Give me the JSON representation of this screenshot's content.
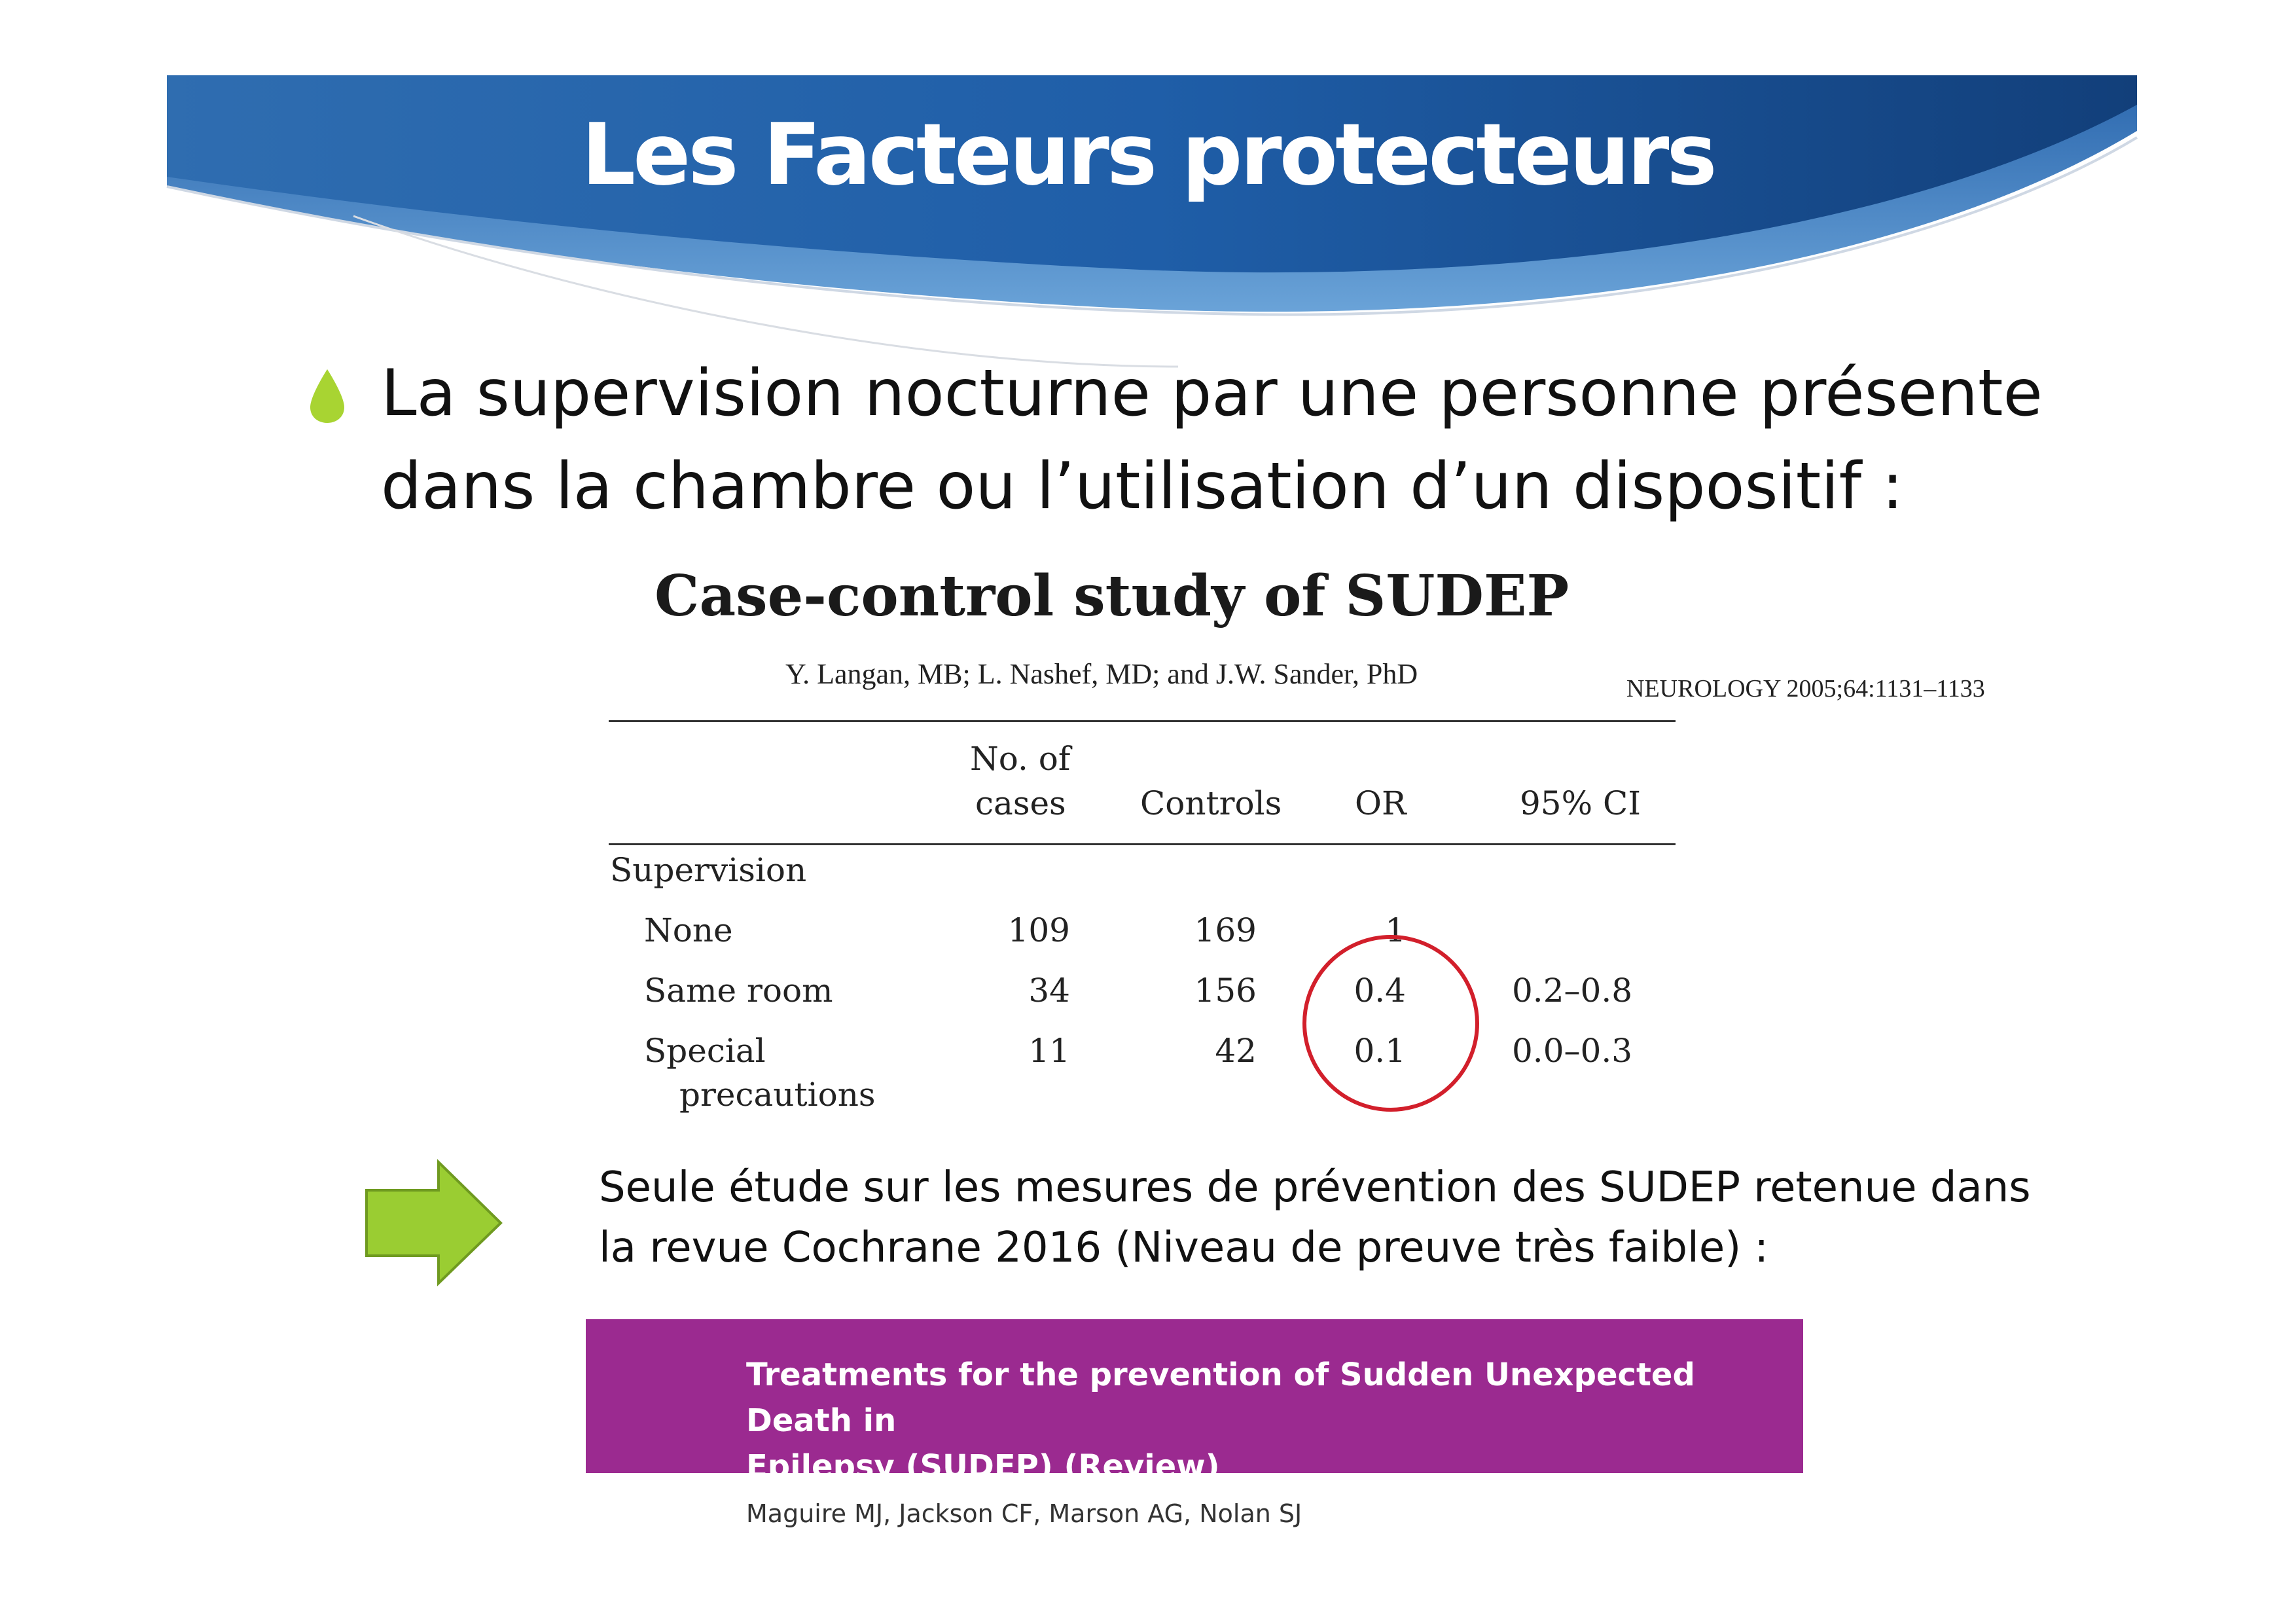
{
  "slide": {
    "title": "Les Facteurs protecteurs",
    "bullet_line1": "La supervision nocturne par une personne présente",
    "bullet_line2": "dans la chambre ou l’utilisation d’un dispositif :"
  },
  "paper": {
    "title": "Case-control study of SUDEP",
    "authors": "Y. Langan, MB; L. Nashef, MD; and J.W. Sander, PhD",
    "journal": "NEUROLOGY 2005;64:1131–1133"
  },
  "table": {
    "headers": {
      "cases_line1": "No. of",
      "cases_line2": "cases",
      "controls": "Controls",
      "or": "OR",
      "ci": "95% CI"
    },
    "group": "Supervision",
    "rows": [
      {
        "label": "None",
        "label2": "",
        "cases": "109",
        "controls": "169",
        "or": "1",
        "ci": ""
      },
      {
        "label": "Same room",
        "label2": "",
        "cases": "34",
        "controls": "156",
        "or": "0.4",
        "ci": "0.2–0.8"
      },
      {
        "label": "Special",
        "label2": "precautions",
        "cases": "11",
        "controls": "42",
        "or": "0.1",
        "ci": "0.0–0.3"
      }
    ]
  },
  "note": {
    "line1": "Seule étude sur les mesures de prévention des SUDEP retenue dans",
    "line2": "la revue Cochrane 2016 (Niveau de preuve très faible) :"
  },
  "cochrane": {
    "title_line1": "Treatments for the prevention of Sudden Unexpected Death in",
    "title_line2": "Epilepsy (SUDEP) (Review)",
    "authors": "Maguire MJ, Jackson CF, Marson AG, Nolan SJ"
  },
  "colors": {
    "banner_dark": "#1b4f8e",
    "banner_light": "#5a93cf",
    "bullet_green": "#a8d432",
    "arrow_green": "#9acd32",
    "circle_red": "#d21f2b",
    "cochrane_purple": "#9b2a90"
  }
}
